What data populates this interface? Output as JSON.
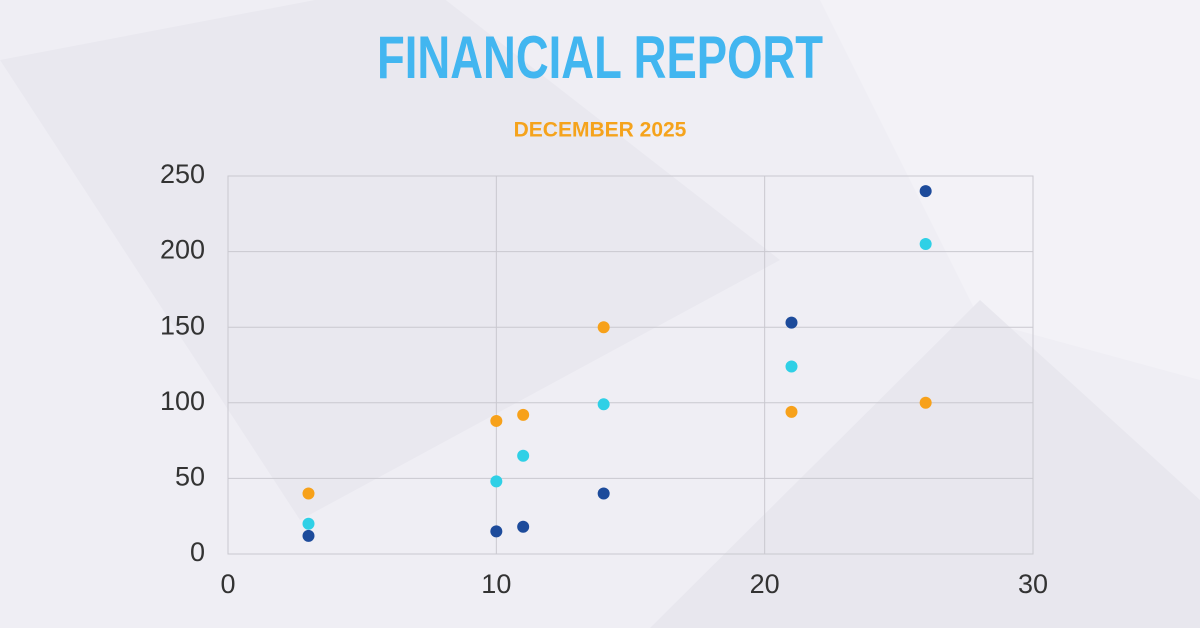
{
  "chart_data": {
    "type": "scatter",
    "title": "FINANCIAL REPORT",
    "subtitle": "DECEMBER 2025",
    "x": [
      3,
      10,
      11,
      14,
      21,
      26
    ],
    "series": [
      {
        "color": "#1d4b9b",
        "values": [
          12,
          15,
          18,
          40,
          153,
          240
        ]
      },
      {
        "color": "#2fd0e6",
        "values": [
          20,
          48,
          65,
          99,
          124,
          205
        ]
      },
      {
        "color": "#f7a11a",
        "values": [
          40,
          88,
          92,
          150,
          94,
          100
        ]
      }
    ],
    "xlim": [
      0,
      30
    ],
    "xticks": [
      0,
      10,
      20,
      30
    ],
    "ylim": [
      0,
      250
    ],
    "yticks": [
      0,
      50,
      100,
      150,
      200,
      250
    ],
    "grid": true
  }
}
